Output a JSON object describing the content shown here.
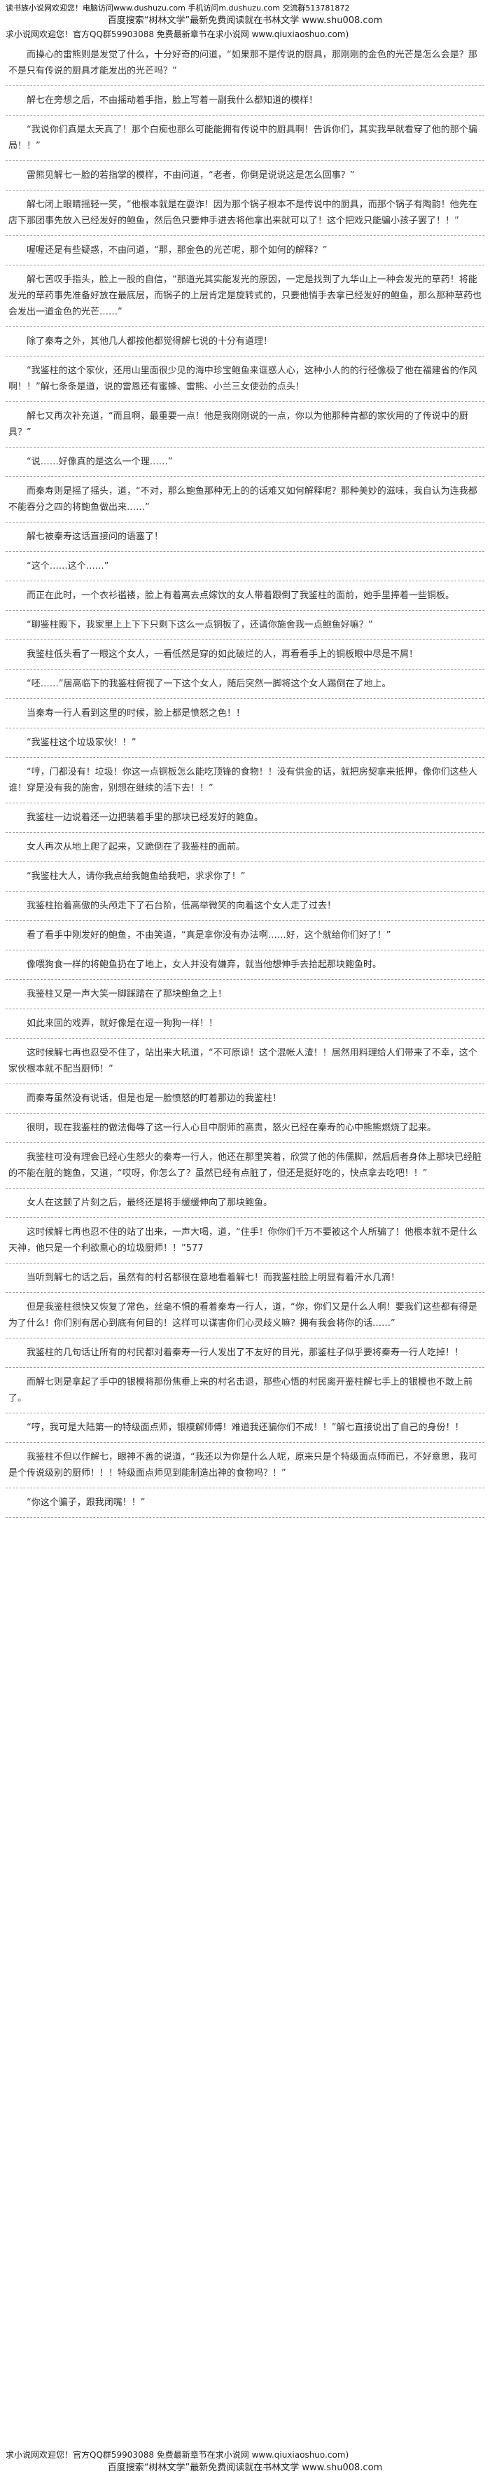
{
  "header": {
    "site_line": "读书族小说网欢迎您！电脑访问www.dushuzu.com 手机访问m.dushuzu.com 交流群513781872",
    "baidu_line": "百度搜索“树林文学”最新免费阅读就在书林文学 www.shu008.com",
    "qiu_line": "求小说网欢迎您！官方QQ群59903088 免费最新章节在求小说网 www.qiuxiaoshuo.com)"
  },
  "paragraphs": [
    "而操心的雷熊则是发觉了什么，十分好奇的问道，“如果那不是传说的厨具，那刚刚的金色的光芒是怎么会是？那不是只有传说的厨具才能发出的光芒吗？”",
    "解七在旁想之后，不由摇动着手指，脸上写着一副我什么都知道的模样！",
    "“我说你们真是太天真了！那个白痴也那么可能能拥有传说中的厨具啊！告诉你们，其实我早就看穿了他的那个骗局！！”",
    "雷熊见解七一脸的若指掌的模样，不由问道，“老者，你倒是说说这是怎么回事？”",
    "解七闭上眼睛摇轻一笑，“他根本就是在耍诈！因为那个锅子根本不是传说中的厨具，而那个锅子有陶韵！他先在店下那团事先放入已经发好的鲍鱼，然后色只要伸手进去将他拿出来就可以了！这个把戏只能骗小孩子罢了！！”",
    "喔喔还是有些疑惑，不由问道，“那，那金色的光芒呢，那个如何的解释？”",
    "解七苦叹手指头，脸上一股的自信，“那道光其实能发光的原因，一定是找到了九华山上一种会发光的草药！将能发光的草药事先准备好放在最底层，而锅子的上层肯定是旋转式的，只要他悄手去拿已经发好的鲍鱼，那么那种草药也会发出一道金色的光芒……”",
    "除了秦寿之外，其他几人都按他都觉得解七说的十分有道理！",
    "“我鉴柱的这个家伙，还用山里面很少见的海中珍宝鲍鱼来诓惑人心，这种小人的的行径像极了他在福建省的作风啊！！”解七条条是道，说的雷恩还有蜜蜂、雷熊、小兰三女使劲的点头！",
    "解七又再次补充道，“而且啊，最重要一点！他是我刚刚说的一点，你以为他那种肯都的家伙用的了传说中的厨具？”",
    "“说……好像真的是这么一个理……”",
    "而秦寿则是摇了摇头，道，“不对，那么鲍鱼那种无上的的话难又如何解释呢？那种美妙的滋味，我自认为连我都不能吞分之四的将鲍鱼做出来……”",
    "解七被秦寿这话直接问的语塞了！",
    "“这个……这个……”",
    "而正在此时，一个衣衫褴褛，脸上有着离去点嫁饮的女人带着跟倒了我鉴柱的面前，她手里捧着一些铜板。",
    "“聊鉴柱殿下，我家里上上下下只剩下这么一点铜板了，还请你施舍我一点鲍鱼好嘛？”",
    "我鉴柱低头看了一眼这个女人，一看低然是穿的如此破烂的人，再看看手上的铜板眼中尽是不屑！",
    "“呸……”居高临下的我鉴柱俯视了一下这个女人，随后突然一脚将这个女人踢倒在了地上。",
    "当秦寿一行人看到这里的时候，脸上都是愤怒之色！！",
    "“我鉴柱这个垃圾家伙！！”",
    "“哼，门都没有！垃圾！你这一点铜板怎么能吃顶锋的食物！！没有供金的话，就把房契拿来抵押，像你们这些人谁！穿是没有我的施舍，别想在继续的活下去！！”",
    "我鉴柱一边说着还一边把装着手里的那块已经发好的鲍鱼。",
    "女人再次从地上爬了起来，又跪倒在了我鉴柱的面前。",
    "“我鉴柱大人，请你我点给我鲍鱼给我吧，求求你了！”",
    "我鉴柱抬着高傲的头颅走下了石台阶，低高举微笑的向着这个女人走了过去！",
    "看了看手中刚发好的鲍鱼，不由笑道，“真是拿你没有办法啊……好，这个就给你们好了！”",
    "像喂狗食一样的将鲍鱼扔在了地上，女人并没有嫌弃，就当他想伸手去拾起那块鲍鱼时。",
    "我鉴柱又是一声大笑一脚踩踏在了那块鲍鱼之上！",
    "如此来回的戏弄，就好像是在逗一狗狗一样！！",
    "这时候解七再也忍受不住了，站出来大吼道，“不可原谅！这个混帐人渣！！居然用料理给人们带来了不幸，这个家伙根本就不配当厨师！”",
    "而秦寿虽然没有说话，但是也是一脸愤怒的盯着那边的我鉴柱！",
    "很明，现在我鉴柱的做法侮辱了这一行人心目中厨师的高贵，怒火已经在秦寿的心中熊熊燃烧了起来。",
    "我鉴柱可没有理会已经心生怒火的秦寿一行人，他还在那里笑着，欣赏了他的伟儒脚，然后后者身体上那块已经脏的不能在脏的鲍鱼，又道，“哎呀，你怎么了？虽然已经有点脏了，但还是挺好吃的，快点拿去吃吧！！”",
    "女人在这颤了片刻之后，最终还是将手缓缓伸向了那块鲍鱼。",
    "这时候解七再也忍不住的站了出来，一声大喝，道，“住手！你你们千万不要被这个人所骗了！他根本就不是什么天神，他只是一个利欲熏心的垃圾厨师！！”577",
    "当听到解七的话之后，虽然有的村名都很在意地看着解七！而我鉴柱脸上明显有着汗水几滴！",
    "但是我鉴柱很快又恢复了常色，丝毫不惧的看着秦寿一行人，道，“你，你们又是什么人啊！要我们这些都有得是为了什么！你们别有居心到底有何目的！这样可以谋害你们心灵歧义嘛？拥有我会将你的话……”",
    "我鉴柱的几句话让所有的村民都对着秦寿一行人发出了不友好的目光，那鉴柱子似乎要将秦寿一行人吃掉！！",
    "而解七则是拿起了手中的银模将那份焦垂上来的村名击退，那些心悟的村民离开鉴柱解七手上的银模也不敢上前了。",
    "“哼，我可是大陆第一的特级面点师，银模解师傅！难道我还骗你们不成！！”解七直接说出了自己的身份！！",
    "我鉴柱不但以作解七，眼神不善的说道，“我还以为你是什么人呢，原来只是个特级面点师而已，不好意思，我可是个传说级别的厨师！！！特级面点师见到能制造出神的食物吗？！”",
    "“你这个骗子，跟我闭嘴！！”"
  ],
  "footer": {
    "qiu_line": "求小说网欢迎您！官方QQ群59903088 免费最新章节在求小说网 www.qiuxiaoshuo.com)",
    "baidu_line": "百度搜索“树林文学”最新免费阅读就在书林文学 www.shu008.com"
  }
}
